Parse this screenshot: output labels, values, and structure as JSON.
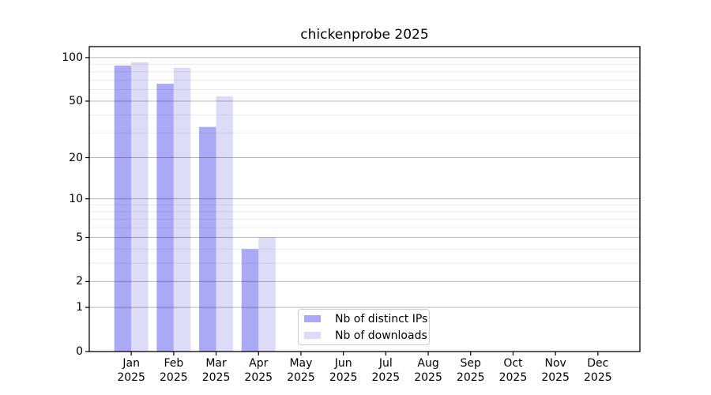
{
  "chart_data": {
    "type": "bar",
    "title": "chickenprobe 2025",
    "categories": [
      "Jan",
      "Feb",
      "Mar",
      "Apr",
      "May",
      "Jun",
      "Jul",
      "Aug",
      "Sep",
      "Oct",
      "Nov",
      "Dec"
    ],
    "category_year": "2025",
    "series": [
      {
        "name": "Nb of distinct IPs",
        "color": "#a9a9f5",
        "values": [
          88,
          66,
          33,
          4,
          0,
          0,
          0,
          0,
          0,
          0,
          0,
          0
        ]
      },
      {
        "name": "Nb of downloads",
        "color": "#dcdcf8",
        "values": [
          93,
          85,
          54,
          5,
          0,
          0,
          0,
          0,
          0,
          0,
          0,
          0
        ]
      }
    ],
    "yscale": "log1p",
    "ylim": [
      0,
      119
    ],
    "yticks": [
      0,
      1,
      2,
      5,
      10,
      20,
      50,
      100
    ],
    "yticks_minor": [
      3,
      4,
      6,
      7,
      8,
      9,
      30,
      40,
      60,
      70,
      80,
      90
    ],
    "xlabel": "",
    "ylabel": "",
    "grid": true,
    "legend_position": "lower center",
    "colors": {
      "background": "#ffffff",
      "axis": "#000000",
      "grid_major": "rgba(0,0,0,0.28)",
      "grid_minor": "rgba(0,0,0,0.08)",
      "legend_border": "#cccccc",
      "text": "#000000"
    }
  }
}
